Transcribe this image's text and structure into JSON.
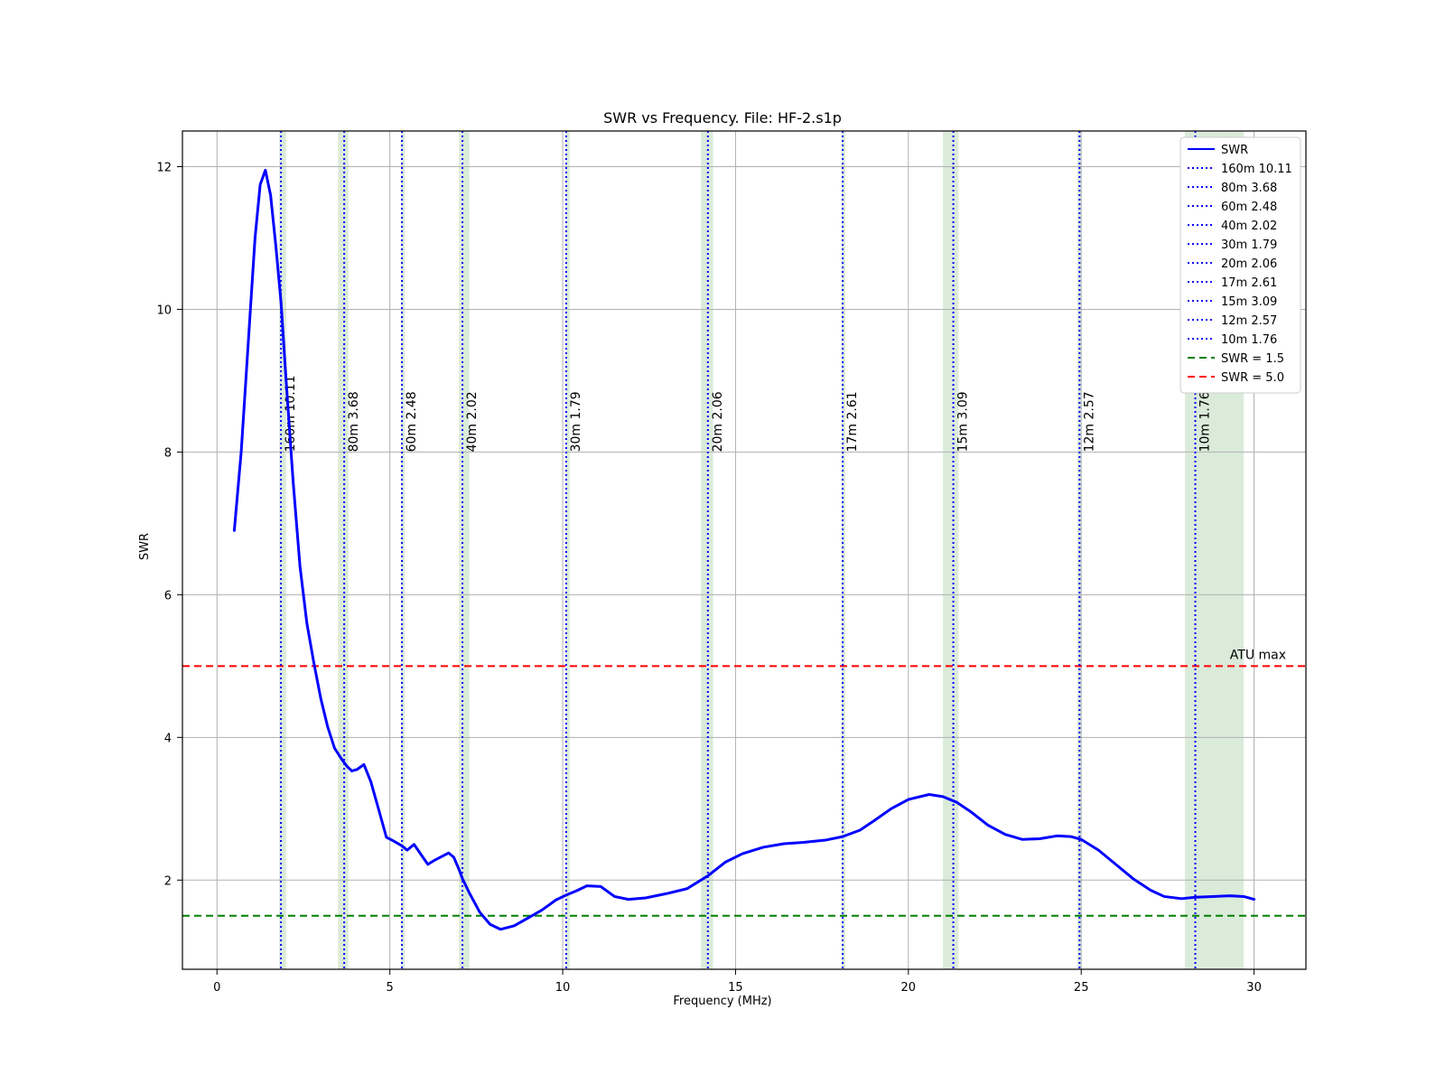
{
  "chart_data": {
    "type": "line",
    "title": "SWR vs Frequency.  File: HF-2.s1p",
    "xlabel": "Frequency (MHz)",
    "ylabel": "SWR",
    "xlim": [
      -1,
      31.5
    ],
    "ylim": [
      0.75,
      12.5
    ],
    "grid": true,
    "legend_position": "top-right",
    "x_ticks": [
      0,
      5,
      10,
      15,
      20,
      25,
      30
    ],
    "y_ticks": [
      2,
      4,
      6,
      8,
      10,
      12
    ],
    "x_tick_labels": [
      "0",
      "5",
      "10",
      "15",
      "20",
      "25",
      "30"
    ],
    "y_tick_labels": [
      "2",
      "4",
      "6",
      "8",
      "10",
      "12"
    ],
    "colors": {
      "swr_line": "#0000ff",
      "band_marker": "#0000ff",
      "band_shade": "#d9ead8",
      "reference_1_5": "#008000",
      "reference_5_0": "#ff0000",
      "grid": "#b0b0b0",
      "axes": "#000000"
    },
    "series": [
      {
        "name": "SWR",
        "points": [
          [
            0.5,
            6.9
          ],
          [
            0.7,
            8.0
          ],
          [
            0.9,
            9.5
          ],
          [
            1.1,
            11.0
          ],
          [
            1.25,
            11.75
          ],
          [
            1.4,
            11.95
          ],
          [
            1.55,
            11.6
          ],
          [
            1.7,
            10.9
          ],
          [
            1.85,
            10.11
          ],
          [
            2.0,
            9.0
          ],
          [
            2.2,
            7.6
          ],
          [
            2.4,
            6.4
          ],
          [
            2.6,
            5.6
          ],
          [
            2.8,
            5.05
          ],
          [
            3.0,
            4.55
          ],
          [
            3.2,
            4.15
          ],
          [
            3.4,
            3.85
          ],
          [
            3.6,
            3.7
          ],
          [
            3.75,
            3.6
          ],
          [
            3.9,
            3.53
          ],
          [
            4.05,
            3.55
          ],
          [
            4.25,
            3.62
          ],
          [
            4.45,
            3.38
          ],
          [
            4.7,
            2.95
          ],
          [
            4.9,
            2.6
          ],
          [
            5.1,
            2.55
          ],
          [
            5.35,
            2.48
          ],
          [
            5.5,
            2.42
          ],
          [
            5.7,
            2.5
          ],
          [
            5.9,
            2.36
          ],
          [
            6.1,
            2.22
          ],
          [
            6.3,
            2.28
          ],
          [
            6.5,
            2.33
          ],
          [
            6.7,
            2.38
          ],
          [
            6.85,
            2.32
          ],
          [
            7.0,
            2.15
          ],
          [
            7.1,
            2.02
          ],
          [
            7.3,
            1.82
          ],
          [
            7.6,
            1.55
          ],
          [
            7.9,
            1.38
          ],
          [
            8.2,
            1.31
          ],
          [
            8.6,
            1.36
          ],
          [
            9.0,
            1.47
          ],
          [
            9.4,
            1.58
          ],
          [
            9.8,
            1.72
          ],
          [
            10.1,
            1.79
          ],
          [
            10.4,
            1.85
          ],
          [
            10.7,
            1.92
          ],
          [
            11.1,
            1.91
          ],
          [
            11.5,
            1.77
          ],
          [
            11.9,
            1.73
          ],
          [
            12.4,
            1.75
          ],
          [
            13.0,
            1.81
          ],
          [
            13.6,
            1.88
          ],
          [
            14.2,
            2.06
          ],
          [
            14.7,
            2.25
          ],
          [
            15.2,
            2.37
          ],
          [
            15.8,
            2.46
          ],
          [
            16.4,
            2.51
          ],
          [
            17.0,
            2.53
          ],
          [
            17.6,
            2.56
          ],
          [
            18.1,
            2.61
          ],
          [
            18.6,
            2.7
          ],
          [
            19.0,
            2.83
          ],
          [
            19.5,
            3.0
          ],
          [
            20.0,
            3.13
          ],
          [
            20.6,
            3.2
          ],
          [
            21.0,
            3.17
          ],
          [
            21.4,
            3.09
          ],
          [
            21.8,
            2.96
          ],
          [
            22.3,
            2.77
          ],
          [
            22.8,
            2.64
          ],
          [
            23.3,
            2.57
          ],
          [
            23.8,
            2.58
          ],
          [
            24.3,
            2.62
          ],
          [
            24.7,
            2.61
          ],
          [
            25.0,
            2.57
          ],
          [
            25.5,
            2.42
          ],
          [
            26.0,
            2.22
          ],
          [
            26.5,
            2.02
          ],
          [
            27.0,
            1.86
          ],
          [
            27.4,
            1.77
          ],
          [
            27.9,
            1.74
          ],
          [
            28.3,
            1.76
          ],
          [
            28.8,
            1.77
          ],
          [
            29.3,
            1.78
          ],
          [
            29.7,
            1.77
          ],
          [
            30.0,
            1.73
          ]
        ]
      }
    ],
    "band_markers": [
      {
        "label": "160m 10.11",
        "frequency": 1.85,
        "band": [
          1.8,
          2.0
        ]
      },
      {
        "label": " 80m 3.68",
        "frequency": 3.68,
        "band": [
          3.5,
          3.8
        ]
      },
      {
        "label": " 60m 2.48",
        "frequency": 5.35,
        "band": [
          5.33,
          5.41
        ]
      },
      {
        "label": " 40m 2.02",
        "frequency": 7.1,
        "band": [
          7.0,
          7.3
        ]
      },
      {
        "label": " 30m 1.79",
        "frequency": 10.1,
        "band": [
          10.1,
          10.15
        ]
      },
      {
        "label": " 20m 2.06",
        "frequency": 14.2,
        "band": [
          14.0,
          14.35
        ]
      },
      {
        "label": " 17m 2.61",
        "frequency": 18.1,
        "band": [
          18.068,
          18.168
        ]
      },
      {
        "label": " 15m 3.09",
        "frequency": 21.3,
        "band": [
          21.0,
          21.45
        ]
      },
      {
        "label": " 12m 2.57",
        "frequency": 24.95,
        "band": [
          24.89,
          24.99
        ]
      },
      {
        "label": " 10m 1.76",
        "frequency": 28.3,
        "band": [
          28.0,
          29.7
        ]
      }
    ],
    "annotations": {
      "atu": {
        "text": "ATU max",
        "x": 29.3,
        "y": 5.05
      }
    },
    "reference_lines": [
      {
        "label": "SWR = 1.5",
        "value": 1.5
      },
      {
        "label": "SWR = 5.0",
        "value": 5.0
      }
    ]
  }
}
